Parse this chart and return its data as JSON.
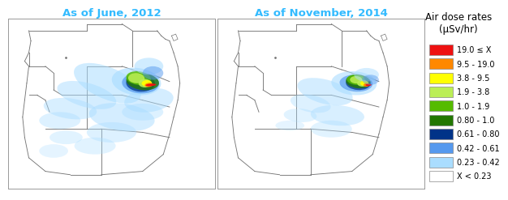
{
  "title_left": "As of June, 2012",
  "title_right": "As of November, 2014",
  "title_color": "#33BBFF",
  "legend_title": "Air dose rates\n(μSv/hr)",
  "legend_entries": [
    {
      "label": "19.0 ≤ X",
      "color": "#EE1111"
    },
    {
      "label": "9.5 - 19.0",
      "color": "#FF8800"
    },
    {
      "label": "3.8 - 9.5",
      "color": "#FFFF00"
    },
    {
      "label": "1.9 - 3.8",
      "color": "#BBEE55"
    },
    {
      "label": "1.0 - 1.9",
      "color": "#55BB00"
    },
    {
      "label": "0.80 - 1.0",
      "color": "#227700"
    },
    {
      "label": "0.61 - 0.80",
      "color": "#003388"
    },
    {
      "label": "0.42 - 0.61",
      "color": "#5599EE"
    },
    {
      "label": "0.23 - 0.42",
      "color": "#AADDFF"
    },
    {
      "label": "X < 0.23",
      "color": "#FFFFFF"
    }
  ],
  "legend_title_fontsize": 8.5,
  "legend_label_fontsize": 7,
  "border_color": "#777777",
  "figure_bg": "#FFFFFF",
  "title_fontsize": 9.5
}
